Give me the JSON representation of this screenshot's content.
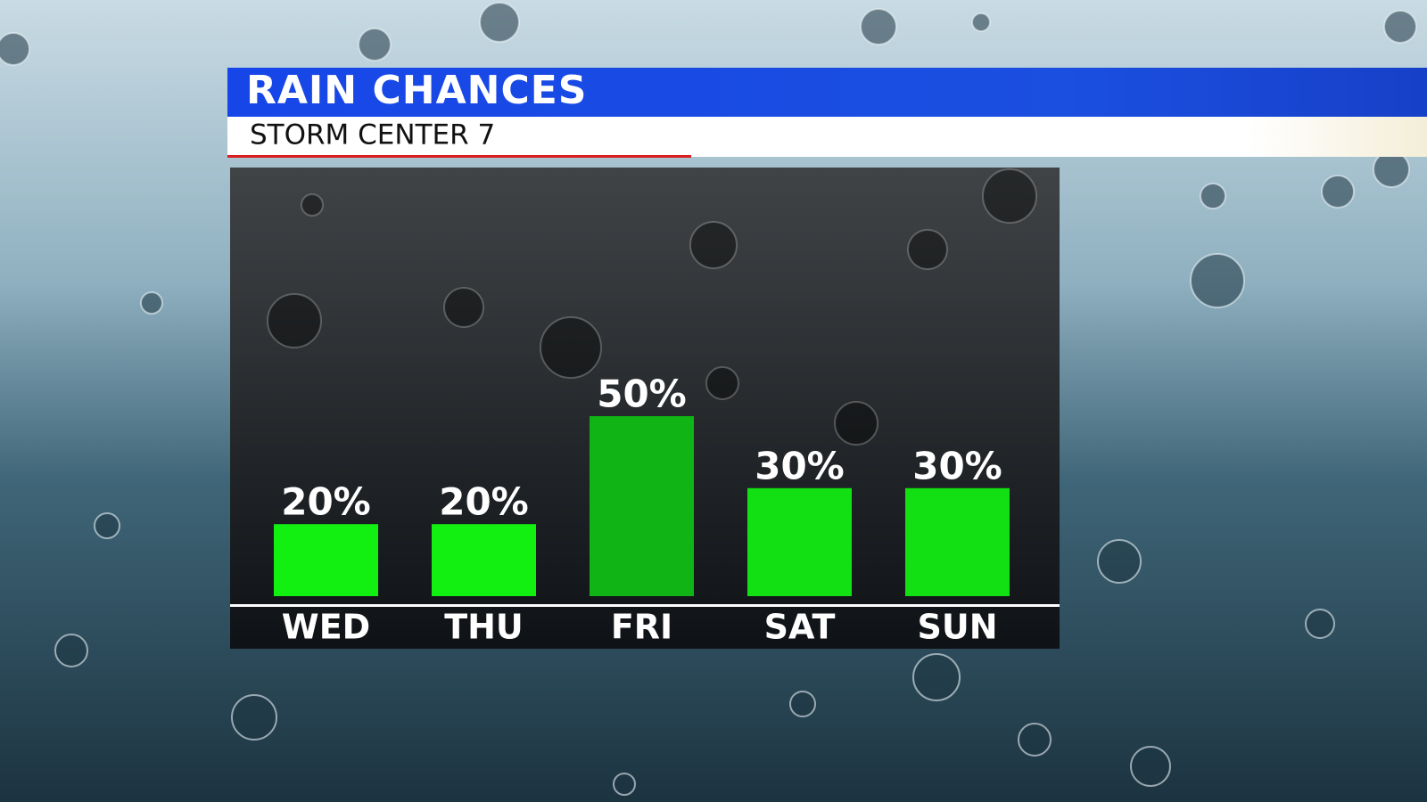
{
  "chart_data": {
    "type": "bar",
    "title": "RAIN CHANCES",
    "subtitle": "STORM CENTER 7",
    "categories": [
      "WED",
      "THU",
      "FRI",
      "SAT",
      "SUN"
    ],
    "values": [
      20,
      20,
      50,
      30,
      30
    ],
    "value_labels": [
      "20%",
      "20%",
      "50%",
      "30%",
      "30%"
    ],
    "colors": [
      "#12f012",
      "#12f012",
      "#10b414",
      "#12e012",
      "#12e012"
    ]
  }
}
